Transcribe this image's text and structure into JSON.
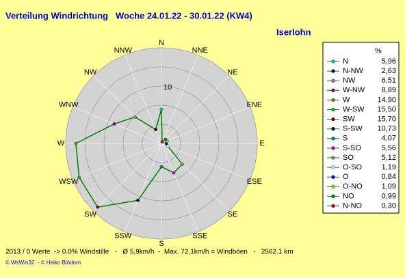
{
  "chart_data": {
    "type": "windrose",
    "title": "Verteilung Windrichtung   Woche 24.01.22 - 30.01.22 (KW4)",
    "subtitle": "Iserlohn",
    "footer": "2013 / 0 Werte  -> 0.0% Windstille   -   Ø 5,9km/h  -  Max. 72,1km/h = Windböen   -   2562.1 km",
    "credit": "© WsWin32  - © Heiko Blödorn",
    "legend_header": "%",
    "categories": [
      "N",
      "N-NW",
      "NW",
      "W-NW",
      "W",
      "W-SW",
      "SW",
      "S-SW",
      "S",
      "S-SO",
      "SO",
      "O-SO",
      "O",
      "O-NO",
      "NO",
      "N-NO"
    ],
    "values": [
      5.96,
      2.63,
      6.51,
      8.89,
      14.9,
      15.5,
      15.7,
      10.73,
      4.07,
      5.56,
      5.12,
      1.19,
      0.84,
      1.09,
      0.99,
      0.3
    ],
    "value_labels": [
      "5,96",
      "2,63",
      "6,51",
      "8,89",
      "14,90",
      "15,50",
      "15,70",
      "10,73",
      "4,07",
      "5,56",
      "5,12",
      "1,19",
      "0,84",
      "1,09",
      "0,99",
      "0,30"
    ],
    "colors": [
      "#00c0c0",
      "#000000",
      "#808080",
      "#800080",
      "#808000",
      "#00c000",
      "#800000",
      "#000080",
      "#008080",
      "#c000c0",
      "#808080",
      "#c0ffc0",
      "#0000ff",
      "#c0c000",
      "#008000",
      "#c00000"
    ],
    "line_color": "#008000",
    "direction_labels": [
      "N",
      "NNE",
      "NE",
      "ENE",
      "E",
      "ESE",
      "SE",
      "SSE",
      "S",
      "SSW",
      "SW",
      "WSW",
      "W",
      "WNW",
      "NW",
      "NNW"
    ],
    "rlim": [
      0,
      16.67
    ],
    "rticks": [
      10
    ],
    "rgrid": [
      3.33,
      6.67,
      10,
      13.33,
      16.67
    ]
  }
}
